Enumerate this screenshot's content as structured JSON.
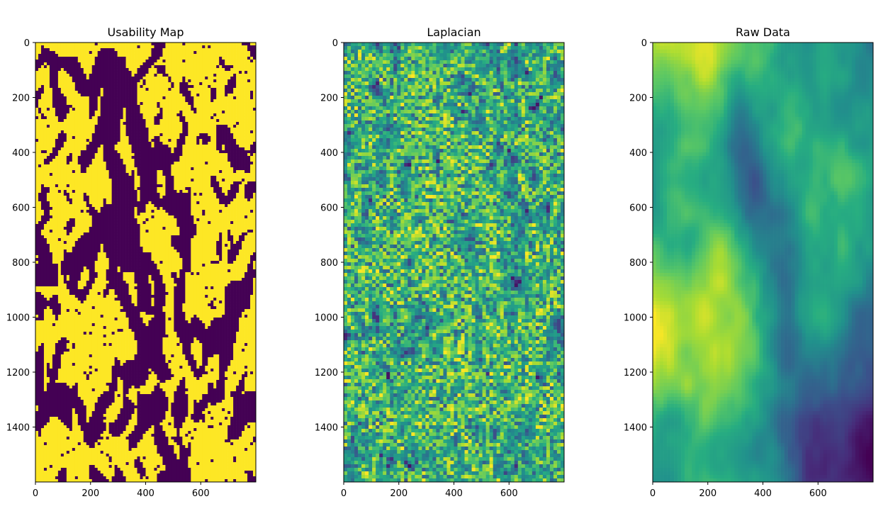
{
  "figure": {
    "background": "#ffffff"
  },
  "chart_data": [
    {
      "type": "heatmap",
      "title": "Usability Map",
      "colormap": "viridis",
      "binary": true,
      "colors": {
        "low": "#440154",
        "high": "#fde725"
      },
      "xlim": [
        0,
        800
      ],
      "ylim": [
        1600,
        0
      ],
      "xticks": [
        0,
        200,
        400,
        600
      ],
      "yticks": [
        0,
        200,
        400,
        600,
        800,
        1000,
        1200,
        1400
      ],
      "grid": false
    },
    {
      "type": "heatmap",
      "title": "Laplacian",
      "colormap": "viridis",
      "binary": false,
      "colors": {
        "low": "#440154",
        "mid": "#21918c",
        "high": "#fde725"
      },
      "xlim": [
        0,
        800
      ],
      "ylim": [
        1600,
        0
      ],
      "xticks": [
        0,
        200,
        400,
        600
      ],
      "yticks": [
        0,
        200,
        400,
        600,
        800,
        1000,
        1200,
        1400
      ],
      "grid": false
    },
    {
      "type": "heatmap",
      "title": "Raw Data",
      "colormap": "viridis",
      "binary": false,
      "colors": {
        "low": "#440154",
        "mid": "#21918c",
        "high": "#fde725"
      },
      "xlim": [
        0,
        800
      ],
      "ylim": [
        1600,
        0
      ],
      "xticks": [
        0,
        200,
        400,
        600
      ],
      "yticks": [
        0,
        200,
        400,
        600,
        800,
        1000,
        1200,
        1400
      ],
      "grid": false
    }
  ]
}
